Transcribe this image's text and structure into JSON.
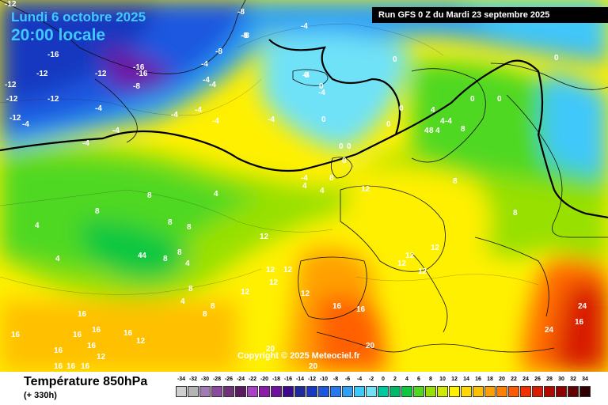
{
  "header": {
    "date": "Lundi 6 octobre 2025",
    "time": "20:00 locale",
    "run": "Run GFS 0 Z du Mardi 23 septembre 2025"
  },
  "copyright": "Copyright © 2025 Meteociel.fr",
  "footer": {
    "variable": "Température 850hPa",
    "lead_time": "(+ 330h)"
  },
  "legend": {
    "ticks": [
      "-34",
      "-32",
      "-30",
      "-28",
      "-26",
      "-24",
      "-22",
      "-20",
      "-18",
      "-16",
      "-14",
      "-12",
      "-10",
      "-8",
      "-6",
      "-4",
      "-2",
      "0",
      "2",
      "4",
      "6",
      "8",
      "10",
      "12",
      "14",
      "16",
      "18",
      "20",
      "22",
      "24",
      "26",
      "28",
      "30",
      "32",
      "34"
    ],
    "colors": [
      "#cfcfcf",
      "#b4b4b4",
      "#a07ab0",
      "#8a4aa0",
      "#70307a",
      "#5a1a60",
      "#aa40c8",
      "#8a1aa8",
      "#7010a0",
      "#3c0a8c",
      "#1e2a9c",
      "#1838c0",
      "#1a58e0",
      "#2878f0",
      "#2fa0f5",
      "#3fc8fa",
      "#70e2f8",
      "#00c8a0",
      "#00b86c",
      "#10c840",
      "#50d820",
      "#98e000",
      "#d2ea00",
      "#fff000",
      "#ffd800",
      "#ffc000",
      "#ffa000",
      "#ff8000",
      "#ff5a00",
      "#f03000",
      "#d81c00",
      "#b00a00",
      "#900000",
      "#600000",
      "#300000"
    ]
  },
  "map": {
    "labels": [
      {
        "text": "-12",
        "color": "#ffffff"
      },
      {
        "text": "-16",
        "color": "#ffffff"
      },
      {
        "text": "-16",
        "color": "#ffffff"
      },
      {
        "text": "-12",
        "color": "#ffffff"
      },
      {
        "text": "-12",
        "color": "#ffffff"
      },
      {
        "text": "-12",
        "color": "#ffffff"
      },
      {
        "text": "-12",
        "color": "#ffffff"
      },
      {
        "text": "-12",
        "color": "#ffffff"
      },
      {
        "text": "-16",
        "color": "#ffffff"
      },
      {
        "text": "-12",
        "color": "#ffffff"
      },
      {
        "text": "-8",
        "color": "#ffffff"
      },
      {
        "text": "-8",
        "color": "#ffffff"
      },
      {
        "text": "-8",
        "color": "#ffffff"
      },
      {
        "text": "-4",
        "color": "#ffffff"
      },
      {
        "text": "-4",
        "color": "#ffffff"
      },
      {
        "text": "-4",
        "color": "#ffffff"
      },
      {
        "text": "-8",
        "color": "#ffffff"
      },
      {
        "text": "-4",
        "color": "#ffffff"
      },
      {
        "text": "-4",
        "color": "#ffffff"
      },
      {
        "text": "-4",
        "color": "#ffffff"
      },
      {
        "text": "-4",
        "color": "#ffffff"
      },
      {
        "text": "-4",
        "color": "#ffffff"
      },
      {
        "text": "-4",
        "color": "#ffffff"
      },
      {
        "text": "-4",
        "color": "#ffffff"
      },
      {
        "text": "-4",
        "color": "#ffffff"
      },
      {
        "text": "-4",
        "color": "#ffffff"
      },
      {
        "text": "-8",
        "color": "#ffffff"
      },
      {
        "text": "-4",
        "color": "#ffffff"
      },
      {
        "text": "-4",
        "color": "#ffffff"
      },
      {
        "text": "0",
        "color": "#ffffff"
      },
      {
        "text": "0",
        "color": "#ffffff"
      },
      {
        "text": "0",
        "color": "#ffffff"
      },
      {
        "text": "0",
        "color": "#ffffff"
      },
      {
        "text": "0",
        "color": "#ffffff"
      },
      {
        "text": "0",
        "color": "#ffffff"
      },
      {
        "text": "0",
        "color": "#ffffff"
      },
      {
        "text": "0",
        "color": "#ffffff"
      },
      {
        "text": "0",
        "color": "#ffffff"
      },
      {
        "text": "0",
        "color": "#ffffff"
      },
      {
        "text": "0",
        "color": "#ffffff"
      },
      {
        "text": "4",
        "color": "#ffffff"
      },
      {
        "text": "4",
        "color": "#ffffff"
      },
      {
        "text": "8",
        "color": "#ffffff"
      },
      {
        "text": "8",
        "color": "#ffffff"
      },
      {
        "text": "4",
        "color": "#ffffff"
      },
      {
        "text": "4",
        "color": "#ffffff"
      },
      {
        "text": "-4",
        "color": "#ffffff"
      },
      {
        "text": "0",
        "color": "#ffffff"
      },
      {
        "text": "-4",
        "color": "#ffffff"
      },
      {
        "text": "4",
        "color": "#ffffff"
      },
      {
        "text": "4",
        "color": "#ffffff"
      },
      {
        "text": "8",
        "color": "#ffffff"
      },
      {
        "text": "8",
        "color": "#ffffff"
      },
      {
        "text": "8",
        "color": "#ffffff"
      },
      {
        "text": "4",
        "color": "#ffffff"
      },
      {
        "text": "4",
        "color": "#ffffff"
      },
      {
        "text": "4",
        "color": "#ffffff"
      },
      {
        "text": "8",
        "color": "#ffffff"
      },
      {
        "text": "8",
        "color": "#ffffff"
      },
      {
        "text": "8",
        "color": "#ffffff"
      },
      {
        "text": "8",
        "color": "#ffffff"
      },
      {
        "text": "4",
        "color": "#ffffff"
      },
      {
        "text": "4",
        "color": "#ffffff"
      },
      {
        "text": "-4",
        "color": "#ffffff"
      },
      {
        "text": "8",
        "color": "#ffffff"
      },
      {
        "text": "8",
        "color": "#ffffff"
      },
      {
        "text": "8",
        "color": "#ffffff"
      },
      {
        "text": "4",
        "color": "#ffffff"
      },
      {
        "text": "8",
        "color": "#ffffff"
      },
      {
        "text": "8",
        "color": "#ffffff"
      },
      {
        "text": "12",
        "color": "#ffffff"
      },
      {
        "text": "12",
        "color": "#ffffff"
      },
      {
        "text": "12",
        "color": "#ffffff"
      },
      {
        "text": "12",
        "color": "#ffffff"
      },
      {
        "text": "12",
        "color": "#ffffff"
      },
      {
        "text": "12",
        "color": "#ffffff"
      },
      {
        "text": "12",
        "color": "#ffffff"
      },
      {
        "text": "12",
        "color": "#ffffff"
      },
      {
        "text": "12",
        "color": "#ffffff"
      },
      {
        "text": "12",
        "color": "#ffffff"
      },
      {
        "text": "16",
        "color": "#ffffff"
      },
      {
        "text": "16",
        "color": "#ffffff"
      },
      {
        "text": "16",
        "color": "#ffffff"
      },
      {
        "text": "16",
        "color": "#ffffff"
      },
      {
        "text": "16",
        "color": "#ffffff"
      },
      {
        "text": "16",
        "color": "#ffffff"
      },
      {
        "text": "16",
        "color": "#ffffff"
      },
      {
        "text": "16",
        "color": "#ffffff"
      },
      {
        "text": "16",
        "color": "#ffffff"
      },
      {
        "text": "12",
        "color": "#ffffff"
      },
      {
        "text": "16",
        "color": "#ffffff"
      },
      {
        "text": "16",
        "color": "#ffffff"
      },
      {
        "text": "16",
        "color": "#ffffff"
      },
      {
        "text": "12",
        "color": "#ffffff"
      },
      {
        "text": "20",
        "color": "#ffffff"
      },
      {
        "text": "20",
        "color": "#ffffff"
      },
      {
        "text": "20",
        "color": "#ffffff"
      },
      {
        "text": "24",
        "color": "#ffffff"
      },
      {
        "text": "24",
        "color": "#ffffff"
      },
      {
        "text": "16",
        "color": "#ffffff"
      },
      {
        "text": "12",
        "color": "#ffffff"
      }
    ]
  }
}
